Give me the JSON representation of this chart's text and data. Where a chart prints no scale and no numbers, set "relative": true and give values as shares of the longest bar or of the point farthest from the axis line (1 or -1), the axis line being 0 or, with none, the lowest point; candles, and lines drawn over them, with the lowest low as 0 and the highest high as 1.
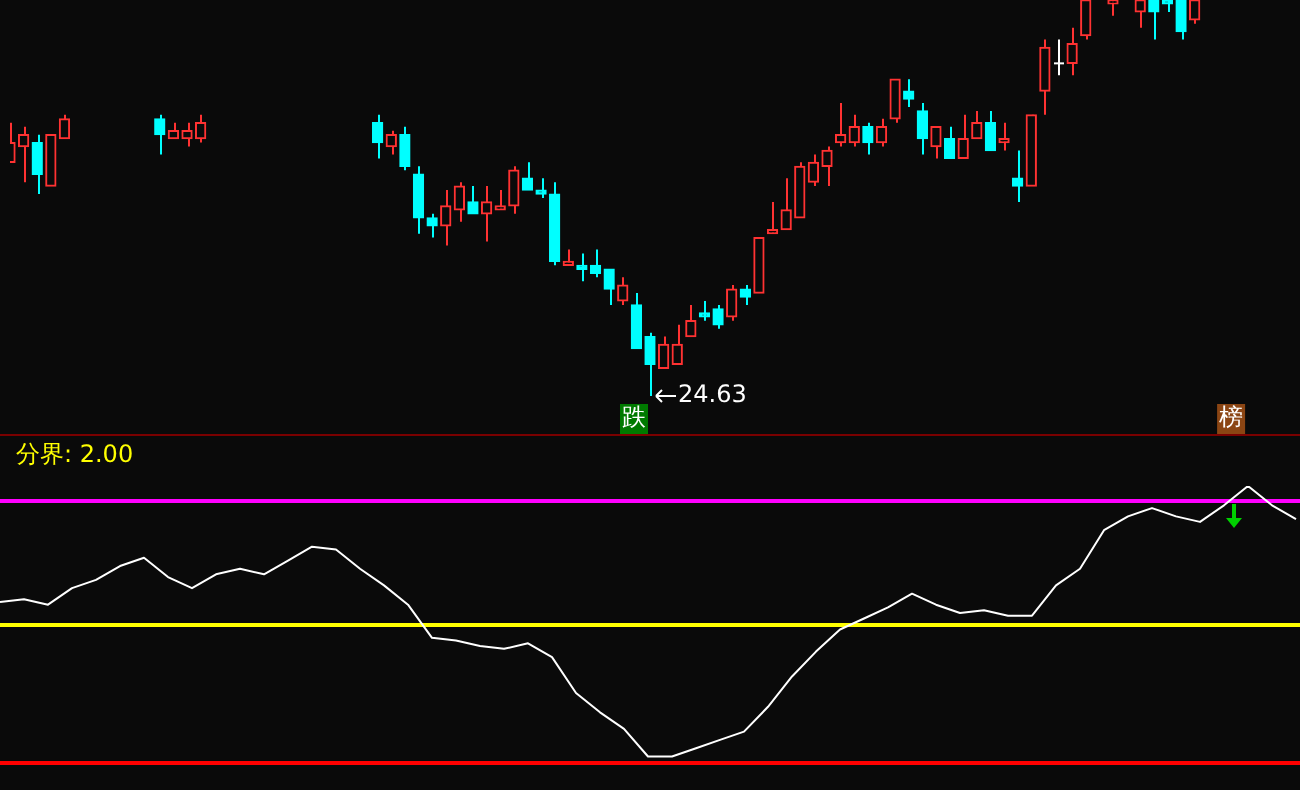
{
  "chart_data": [
    {
      "type": "candlestick",
      "relative": true,
      "categories": [
        null,
        null,
        null,
        null,
        null,
        null,
        null,
        null,
        null,
        null,
        null,
        null,
        null,
        null,
        null,
        null,
        null,
        null,
        null,
        null,
        null,
        null,
        null,
        null,
        null,
        null,
        null,
        null,
        null,
        null,
        null,
        null,
        null,
        null,
        null,
        null,
        null,
        null,
        null,
        null,
        null,
        null,
        null,
        null,
        null,
        null,
        null,
        null,
        null,
        null,
        null,
        null,
        null,
        null,
        null,
        null,
        null,
        null,
        null,
        null,
        null,
        null,
        null,
        null,
        null,
        null,
        null,
        null,
        null,
        null,
        null,
        null,
        null,
        null,
        null,
        null,
        null,
        null,
        null,
        null,
        null,
        null,
        null,
        null,
        null,
        null,
        null,
        null,
        null,
        null,
        null,
        null,
        null,
        null,
        null
      ],
      "ohlc": [
        [
          0.59,
          0.69,
          0.59,
          0.64
        ],
        [
          0.63,
          0.68,
          0.54,
          0.66
        ],
        [
          0.64,
          0.66,
          0.51,
          0.56
        ],
        [
          0.53,
          0.66,
          0.53,
          0.66
        ],
        [
          0.65,
          0.71,
          0.65,
          0.7
        ],
        null,
        null,
        null,
        null,
        null,
        null,
        [
          0.7,
          0.71,
          0.61,
          0.66
        ],
        [
          0.65,
          0.69,
          0.65,
          0.67
        ],
        [
          0.65,
          0.69,
          0.63,
          0.67
        ],
        [
          0.65,
          0.71,
          0.64,
          0.69
        ],
        null,
        null,
        null,
        null,
        null,
        null,
        null,
        null,
        null,
        null,
        null,
        null,
        [
          0.69,
          0.71,
          0.6,
          0.64
        ],
        [
          0.63,
          0.67,
          0.61,
          0.66
        ],
        [
          0.66,
          0.68,
          0.57,
          0.58
        ],
        [
          0.56,
          0.58,
          0.41,
          0.45
        ],
        [
          0.45,
          0.46,
          0.4,
          0.43
        ],
        [
          0.43,
          0.52,
          0.38,
          0.48
        ],
        [
          0.47,
          0.54,
          0.44,
          0.53
        ],
        [
          0.49,
          0.53,
          0.46,
          0.46
        ],
        [
          0.46,
          0.53,
          0.39,
          0.49
        ],
        [
          0.47,
          0.52,
          0.47,
          0.48
        ],
        [
          0.48,
          0.58,
          0.46,
          0.57
        ],
        [
          0.55,
          0.59,
          0.52,
          0.52
        ],
        [
          0.52,
          0.55,
          0.5,
          0.51
        ],
        [
          0.51,
          0.54,
          0.33,
          0.34
        ],
        [
          0.33,
          0.37,
          0.33,
          0.34
        ],
        [
          0.33,
          0.36,
          0.29,
          0.32
        ],
        [
          0.33,
          0.37,
          0.3,
          0.31
        ],
        [
          0.32,
          0.32,
          0.23,
          0.27
        ],
        [
          0.24,
          0.3,
          0.23,
          0.28
        ],
        [
          0.23,
          0.26,
          0.12,
          0.12
        ],
        [
          0.15,
          0.16,
          0,
          0.08
        ],
        [
          0.07,
          0.15,
          0.07,
          0.13
        ],
        [
          0.08,
          0.18,
          0.08,
          0.13
        ],
        [
          0.15,
          0.23,
          0.15,
          0.19
        ],
        [
          0.21,
          0.24,
          0.19,
          0.2
        ],
        [
          0.22,
          0.23,
          0.17,
          0.18
        ],
        [
          0.2,
          0.28,
          0.19,
          0.27
        ],
        [
          0.27,
          0.28,
          0.23,
          0.25
        ],
        [
          0.26,
          0.4,
          0.26,
          0.4
        ],
        [
          0.41,
          0.49,
          0.41,
          0.42
        ],
        [
          0.42,
          0.55,
          0.42,
          0.47
        ],
        [
          0.45,
          0.59,
          0.45,
          0.58
        ],
        [
          0.54,
          0.61,
          0.53,
          0.59
        ],
        [
          0.58,
          0.63,
          0.53,
          0.62
        ],
        [
          0.64,
          0.74,
          0.63,
          0.66
        ],
        [
          0.64,
          0.71,
          0.63,
          0.68
        ],
        [
          0.68,
          0.69,
          0.61,
          0.64
        ],
        [
          0.64,
          0.7,
          0.63,
          0.68
        ],
        [
          0.7,
          0.8,
          0.69,
          0.8
        ],
        [
          0.77,
          0.8,
          0.73,
          0.75
        ],
        [
          0.72,
          0.74,
          0.61,
          0.65
        ],
        [
          0.63,
          0.68,
          0.6,
          0.68
        ],
        [
          0.65,
          0.68,
          0.6,
          0.6
        ],
        [
          0.6,
          0.71,
          0.6,
          0.65
        ],
        [
          0.65,
          0.72,
          0.65,
          0.69
        ],
        [
          0.69,
          0.72,
          0.62,
          0.62
        ],
        [
          0.64,
          0.69,
          0.62,
          0.65
        ],
        [
          0.55,
          0.62,
          0.49,
          0.53
        ],
        [
          0.53,
          0.71,
          0.53,
          0.71
        ],
        [
          0.77,
          0.9,
          0.71,
          0.88
        ],
        [
          0.84,
          0.9,
          0.81,
          0.84
        ],
        [
          0.84,
          0.93,
          0.81,
          0.89
        ],
        [
          0.91,
          1,
          0.9,
          1
        ],
        null,
        [
          0.99,
          1,
          0.96,
          1
        ],
        null,
        [
          0.97,
          1,
          0.93,
          1
        ],
        [
          1,
          1,
          0.9,
          0.97
        ],
        [
          1,
          1,
          0.97,
          0.99
        ],
        [
          1,
          1,
          0.9,
          0.92
        ],
        [
          0.95,
          1,
          0.94,
          1
        ],
        null,
        null,
        null,
        null,
        null,
        null,
        null
      ],
      "colors": [
        "#ff3232",
        "#ff3232",
        "#00ffff",
        "#ff3232",
        "#ff3232",
        null,
        null,
        null,
        null,
        null,
        null,
        "#00ffff",
        "#ff3232",
        "#ff3232",
        "#ff3232",
        null,
        null,
        null,
        null,
        null,
        null,
        null,
        null,
        null,
        null,
        null,
        null,
        "#00ffff",
        "#ff3232",
        "#00ffff",
        "#00ffff",
        "#00ffff",
        "#ff3232",
        "#ff3232",
        "#00ffff",
        "#ff3232",
        "#ff3232",
        "#ff3232",
        "#00ffff",
        "#00ffff",
        "#00ffff",
        "#ff3232",
        "#00ffff",
        "#00ffff",
        "#00ffff",
        "#ff3232",
        "#00ffff",
        "#00ffff",
        "#ff3232",
        "#ff3232",
        "#ff3232",
        "#00ffff",
        "#00ffff",
        "#ff3232",
        "#00ffff",
        "#ff3232",
        "#ff3232",
        "#ff3232",
        "#ff3232",
        "#ff3232",
        "#ff3232",
        "#ff3232",
        "#ff3232",
        "#00ffff",
        "#ff3232",
        "#ff3232",
        "#00ffff",
        "#00ffff",
        "#ff3232",
        "#00ffff",
        "#ff3232",
        "#ff3232",
        "#00ffff",
        "#ff3232",
        "#00ffff",
        "#ff3232",
        "#ff3232",
        "#ffffff",
        "#ff3232",
        "#ff3232",
        null,
        "#ff3232",
        null,
        "#ff3232",
        "#00ffff",
        "#00ffff",
        "#00ffff",
        "#ff3232",
        null,
        null,
        null,
        null,
        null,
        null,
        null
      ],
      "annotations": [
        "24.63",
        "跌",
        "榜"
      ]
    },
    {
      "type": "line",
      "relative": true,
      "categories": [
        null,
        null,
        null,
        null,
        null,
        null,
        null,
        null,
        null,
        null,
        null,
        null,
        null,
        null,
        null,
        null,
        null,
        null,
        null,
        null,
        null,
        null,
        null,
        null,
        null,
        null,
        null,
        null,
        null,
        null,
        null,
        null,
        null,
        null,
        null,
        null,
        null,
        null,
        null,
        null,
        null,
        null,
        null,
        null,
        null,
        null,
        null,
        null,
        null,
        null,
        null,
        null,
        null,
        null,
        null
      ],
      "series": [
        {
          "color": "#ffffff",
          "values": [
            0.58,
            0.59,
            0.57,
            0.63,
            0.66,
            0.71,
            0.74,
            0.67,
            0.63,
            0.68,
            0.7,
            0.68,
            0.73,
            0.78,
            0.77,
            0.7,
            0.64,
            0.57,
            0.45,
            0.44,
            0.42,
            0.41,
            0.43,
            0.38,
            0.25,
            0.18,
            0.12,
            0.02,
            0.02,
            0.05,
            0.08,
            0.11,
            0.2,
            0.31,
            0.4,
            0.48,
            0.52,
            0.56,
            0.61,
            0.57,
            0.54,
            0.55,
            0.53,
            0.53,
            0.64,
            0.7,
            0.84,
            0.89,
            0.92,
            0.89,
            0.87,
            0.93,
            1,
            0.93,
            0.88
          ]
        }
      ],
      "ref_lines": [
        {
          "axis": "y",
          "value": 0.95,
          "color": "#ff00ff"
        },
        {
          "axis": "y",
          "value": 0.5,
          "color": "#ffff00"
        },
        {
          "axis": "y",
          "value": 0,
          "color": "#ff0000"
        }
      ],
      "annotations": [
        "分界: 2.00"
      ]
    }
  ]
}
